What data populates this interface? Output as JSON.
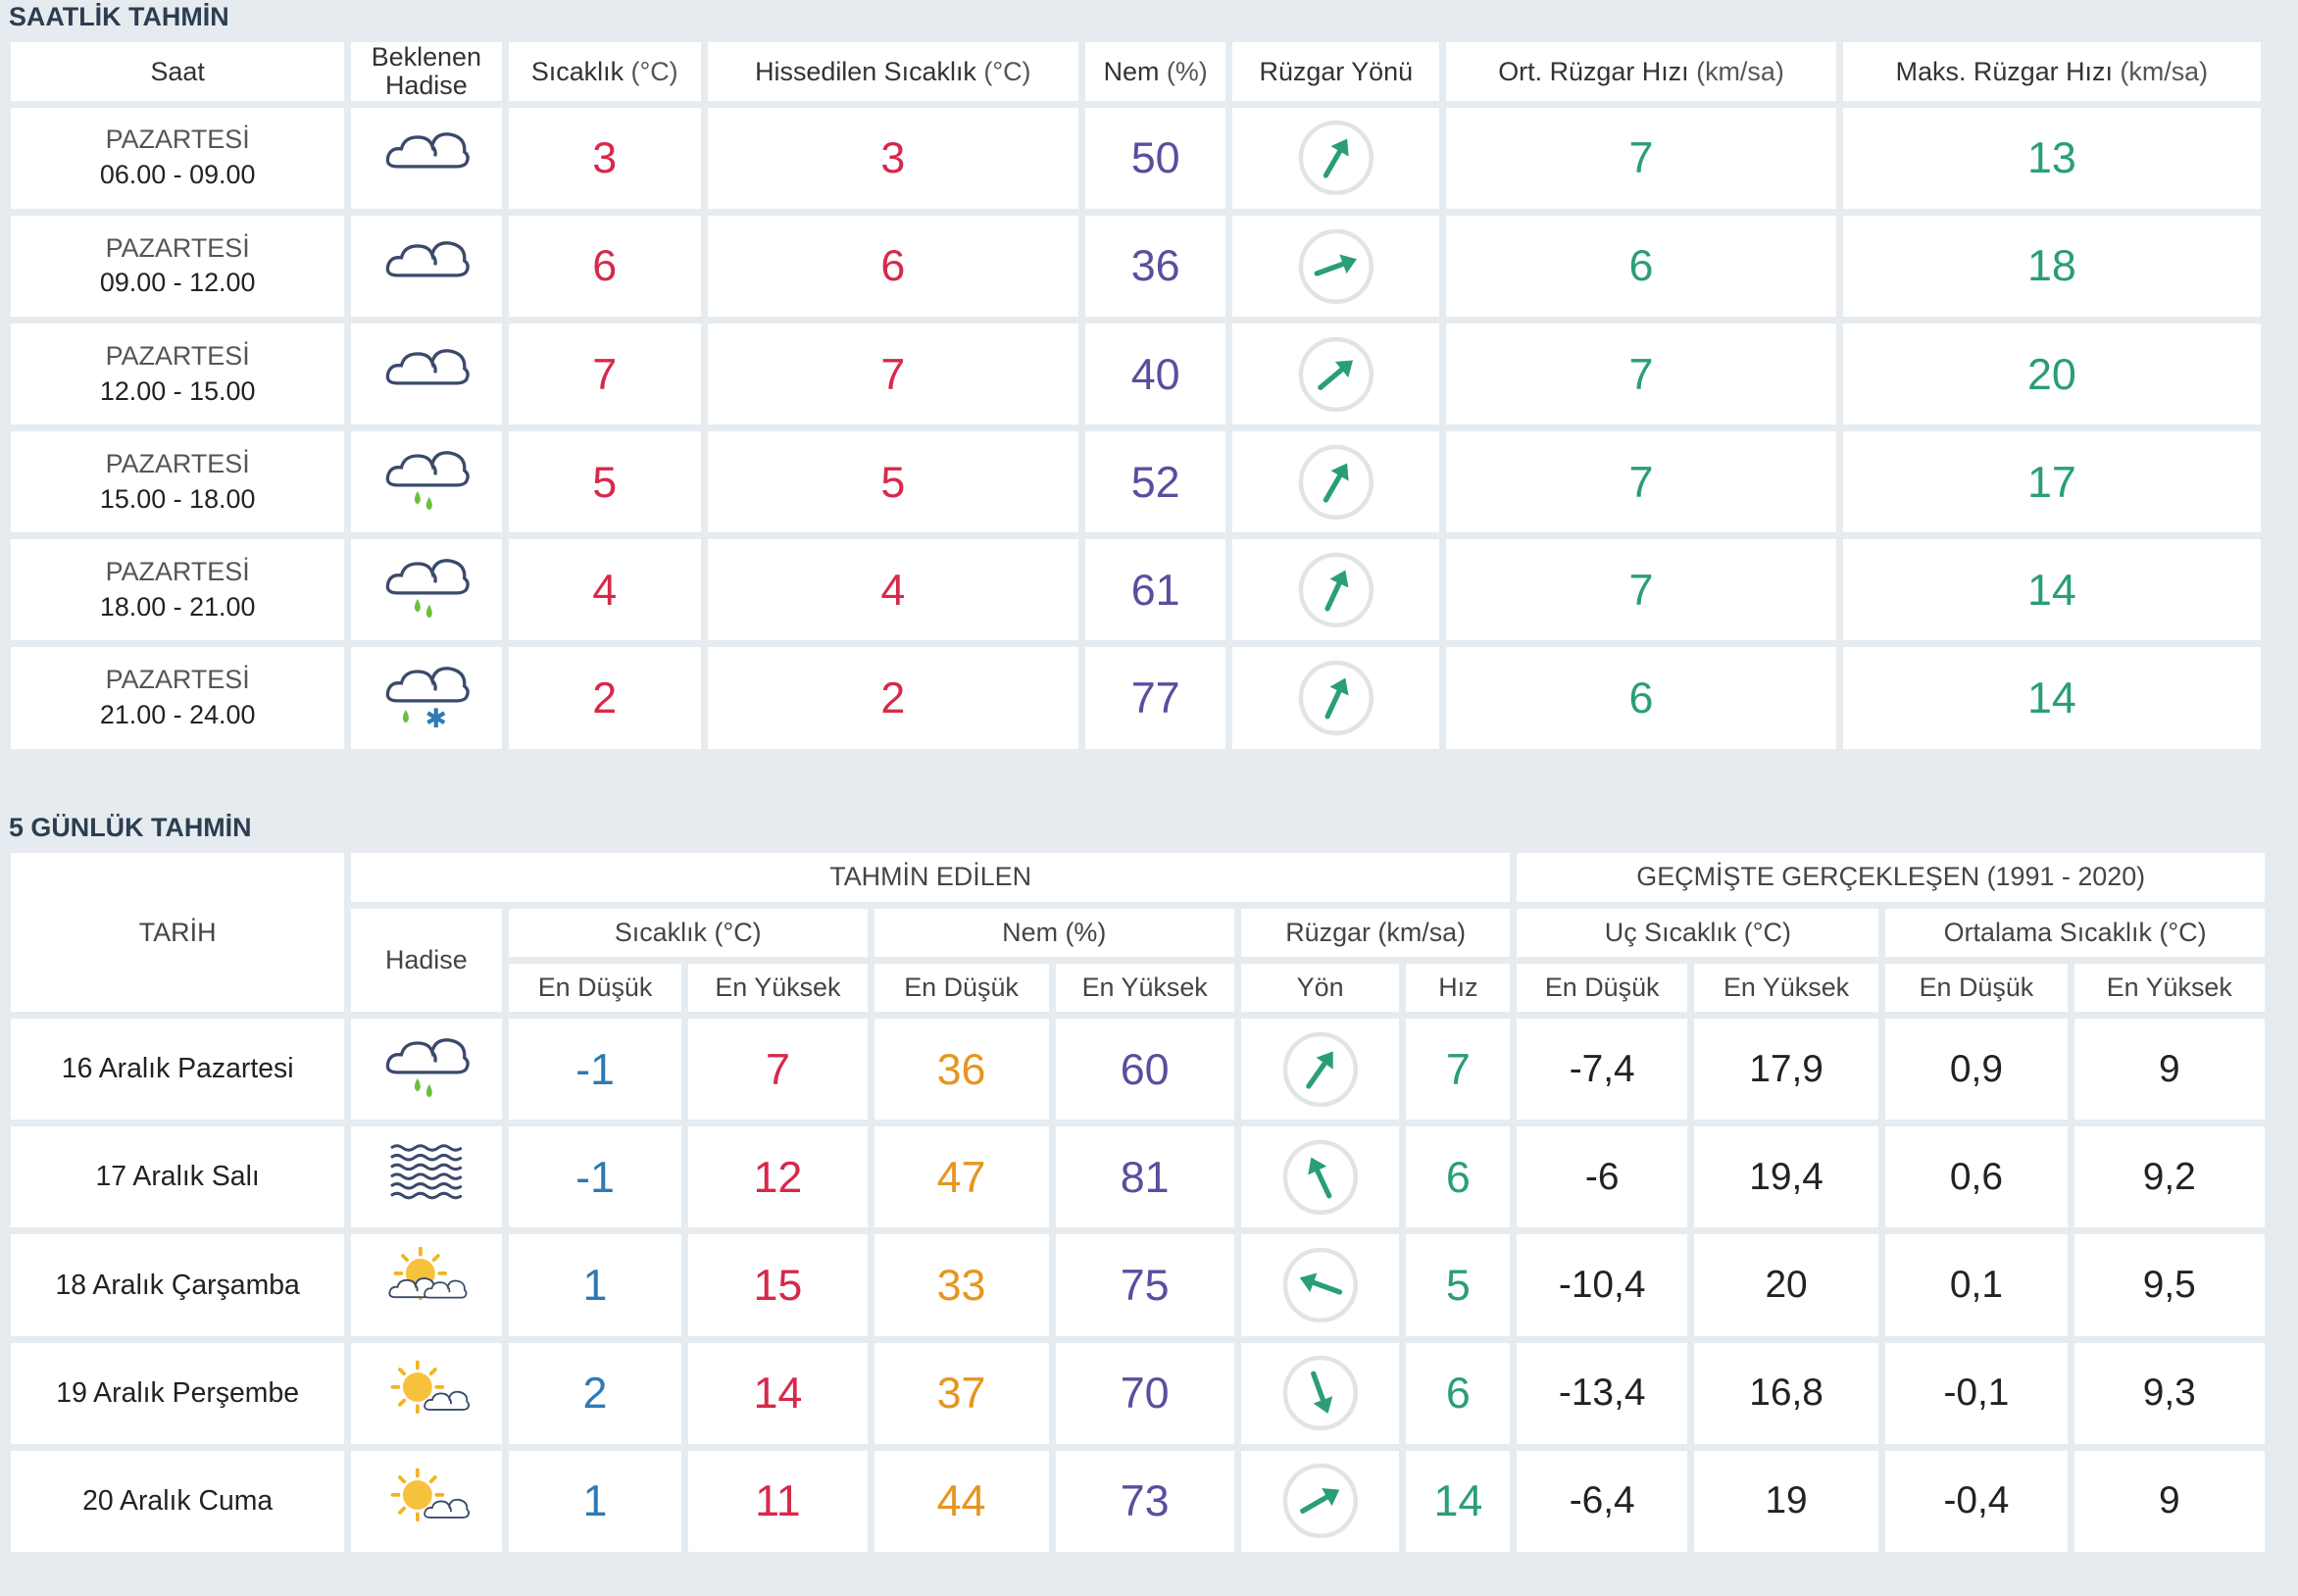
{
  "hourly": {
    "title": "SAATLİK TAHMİN",
    "headers": {
      "saat": "Saat",
      "hadise_1": "Beklenen",
      "hadise_2": "Hadise",
      "sicaklik": "Sıcaklık",
      "sicaklik_unit": "(°C)",
      "hissedilen": "Hissedilen Sıcaklık",
      "hissedilen_unit": "(°C)",
      "nem": "Nem",
      "nem_unit": "(%)",
      "ruzgar_yonu": "Rüzgar Yönü",
      "ort_ruzgar": "Ort. Rüzgar Hızı",
      "ort_ruzgar_unit": "(km/sa)",
      "maks_ruzgar": "Maks. Rüzgar Hızı",
      "maks_ruzgar_unit": "(km/sa)"
    },
    "rows": [
      {
        "day": "PAZARTESİ",
        "time": "06.00 - 09.00",
        "icon": "cloudy-icon",
        "temp": "3",
        "feels": "3",
        "humidity": "50",
        "wind_dir": "southwest",
        "wind_dir_deg": 210,
        "avg_wind": "7",
        "max_wind": "13"
      },
      {
        "day": "PAZARTESİ",
        "time": "09.00 - 12.00",
        "icon": "cloudy-icon",
        "temp": "6",
        "feels": "6",
        "humidity": "36",
        "wind_dir": "west-southwest",
        "wind_dir_deg": 250,
        "avg_wind": "6",
        "max_wind": "18"
      },
      {
        "day": "PAZARTESİ",
        "time": "12.00 - 15.00",
        "icon": "cloudy-icon",
        "temp": "7",
        "feels": "7",
        "humidity": "40",
        "wind_dir": "southwest",
        "wind_dir_deg": 230,
        "avg_wind": "7",
        "max_wind": "20"
      },
      {
        "day": "PAZARTESİ",
        "time": "15.00 - 18.00",
        "icon": "rain-icon",
        "temp": "5",
        "feels": "5",
        "humidity": "52",
        "wind_dir": "southwest",
        "wind_dir_deg": 210,
        "avg_wind": "7",
        "max_wind": "17"
      },
      {
        "day": "PAZARTESİ",
        "time": "18.00 - 21.00",
        "icon": "rain-icon",
        "temp": "4",
        "feels": "4",
        "humidity": "61",
        "wind_dir": "southwest",
        "wind_dir_deg": 205,
        "avg_wind": "7",
        "max_wind": "14"
      },
      {
        "day": "PAZARTESİ",
        "time": "21.00 - 24.00",
        "icon": "sleet-icon",
        "temp": "2",
        "feels": "2",
        "humidity": "77",
        "wind_dir": "southwest",
        "wind_dir_deg": 205,
        "avg_wind": "6",
        "max_wind": "14"
      }
    ]
  },
  "daily": {
    "title": "5 GÜNLÜK TAHMİN",
    "headers": {
      "tarih": "TARİH",
      "tahmin": "TAHMİN EDİLEN",
      "gecmis": "GEÇMİŞTE GERÇEKLEŞEN (1991 - 2020)",
      "hadise": "Hadise",
      "sicaklik": "Sıcaklık (°C)",
      "nem": "Nem (%)",
      "ruzgar": "Rüzgar (km/sa)",
      "uc": "Uç Sıcaklık (°C)",
      "ortalama": "Ortalama Sıcaklık (°C)",
      "en_dusuk": "En Düşük",
      "en_yuksek": "En Yüksek",
      "yon": "Yön",
      "hiz": "Hız"
    },
    "rows": [
      {
        "date": "16 Aralık Pazartesi",
        "icon": "rain-icon",
        "t_min": "-1",
        "t_max": "7",
        "h_min": "36",
        "h_max": "60",
        "wind_dir": "southwest",
        "wind_dir_deg": 215,
        "wind_speed": "7",
        "uc_min": "-7,4",
        "uc_max": "17,9",
        "ort_min": "0,9",
        "ort_max": "9"
      },
      {
        "date": "17 Aralık Salı",
        "icon": "fog-icon",
        "t_min": "-1",
        "t_max": "12",
        "h_min": "47",
        "h_max": "81",
        "wind_dir": "south-southeast",
        "wind_dir_deg": 155,
        "wind_speed": "6",
        "uc_min": "-6",
        "uc_max": "19,4",
        "ort_min": "0,6",
        "ort_max": "9,2"
      },
      {
        "date": "18 Aralık Çarşamba",
        "icon": "partly-cloudy-icon",
        "t_min": "1",
        "t_max": "15",
        "h_min": "33",
        "h_max": "75",
        "wind_dir": "east-southeast",
        "wind_dir_deg": 110,
        "wind_speed": "5",
        "uc_min": "-10,4",
        "uc_max": "20",
        "ort_min": "0,1",
        "ort_max": "9,5"
      },
      {
        "date": "19 Aralık Perşembe",
        "icon": "mostly-sunny-icon",
        "t_min": "2",
        "t_max": "14",
        "h_min": "37",
        "h_max": "70",
        "wind_dir": "north-northwest",
        "wind_dir_deg": 340,
        "wind_speed": "6",
        "uc_min": "-13,4",
        "uc_max": "16,8",
        "ort_min": "-0,1",
        "ort_max": "9,3"
      },
      {
        "date": "20 Aralık Cuma",
        "icon": "mostly-sunny-icon",
        "t_min": "1",
        "t_max": "11",
        "h_min": "44",
        "h_max": "73",
        "wind_dir": "southwest",
        "wind_dir_deg": 240,
        "wind_speed": "14",
        "uc_min": "-6,4",
        "uc_max": "19",
        "ort_min": "-0,4",
        "ort_max": "9"
      }
    ]
  },
  "colors": {
    "background": "#e6ebf0",
    "temperature": "#d7294b",
    "humidity": "#5a4e9e",
    "wind": "#2a9d7a",
    "min_temp": "#2d7ab5",
    "min_humidity": "#e69520"
  }
}
